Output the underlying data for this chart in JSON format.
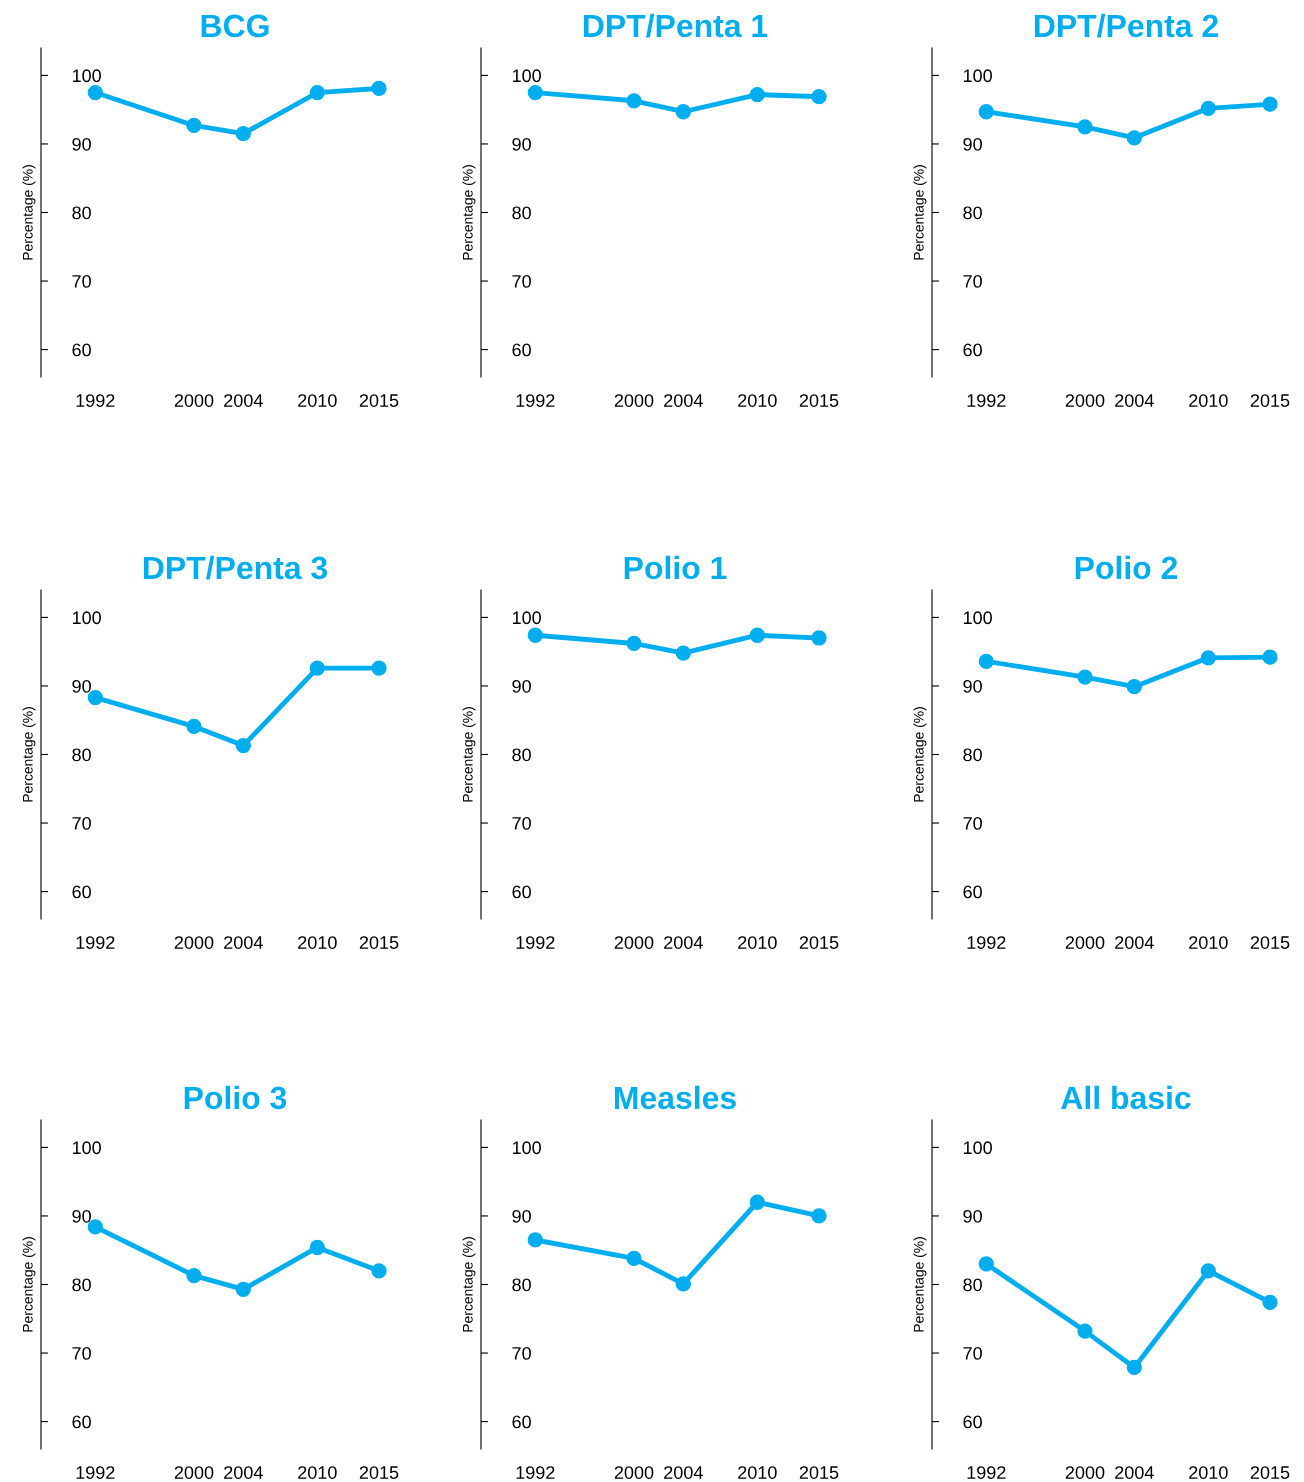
{
  "chart_data": [
    {
      "type": "line",
      "title": "BCG",
      "ylabel": "Percentage (%)",
      "x": [
        1992,
        2000,
        2004,
        2010,
        2015
      ],
      "values": [
        97.5,
        92.7,
        91.5,
        97.5,
        98.1
      ],
      "color": "#00aeef",
      "marker": "circle",
      "line_style": "solid",
      "xlim": [
        1987.6,
        2015
      ],
      "xticks": [
        1992,
        2000,
        2004,
        2010,
        2015
      ],
      "ylim": [
        56,
        104
      ],
      "yticks": [
        60,
        70,
        80,
        90,
        100
      ],
      "grid": false
    },
    {
      "type": "line",
      "title": "DPT/Penta 1",
      "ylabel": "Percentage (%)",
      "x": [
        1992,
        2000,
        2004,
        2010,
        2015
      ],
      "values": [
        97.5,
        96.3,
        94.7,
        97.2,
        96.9
      ],
      "color": "#00aeef",
      "marker": "circle",
      "line_style": "solid",
      "xlim": [
        1987.6,
        2015
      ],
      "xticks": [
        1992,
        2000,
        2004,
        2010,
        2015
      ],
      "ylim": [
        56,
        104
      ],
      "yticks": [
        60,
        70,
        80,
        90,
        100
      ],
      "grid": false
    },
    {
      "type": "line",
      "title": "DPT/Penta 2",
      "ylabel": "Percentage (%)",
      "x": [
        1992,
        2000,
        2004,
        2010,
        2015
      ],
      "values": [
        94.7,
        92.5,
        90.9,
        95.2,
        95.8
      ],
      "color": "#00aeef",
      "marker": "circle",
      "line_style": "solid",
      "xlim": [
        1987.6,
        2015
      ],
      "xticks": [
        1992,
        2000,
        2004,
        2010,
        2015
      ],
      "ylim": [
        56,
        104
      ],
      "yticks": [
        60,
        70,
        80,
        90,
        100
      ],
      "grid": false
    },
    {
      "type": "line",
      "title": "DPT/Penta 3",
      "ylabel": "Percentage (%)",
      "x": [
        1992,
        2000,
        2004,
        2010,
        2015
      ],
      "values": [
        88.3,
        84.1,
        81.3,
        92.6,
        92.6
      ],
      "color": "#00aeef",
      "marker": "circle",
      "line_style": "solid",
      "xlim": [
        1987.6,
        2015
      ],
      "xticks": [
        1992,
        2000,
        2004,
        2010,
        2015
      ],
      "ylim": [
        56,
        104
      ],
      "yticks": [
        60,
        70,
        80,
        90,
        100
      ],
      "grid": false
    },
    {
      "type": "line",
      "title": "Polio 1",
      "ylabel": "Percentage (%)",
      "x": [
        1992,
        2000,
        2004,
        2010,
        2015
      ],
      "values": [
        97.4,
        96.2,
        94.8,
        97.4,
        97.0
      ],
      "color": "#00aeef",
      "marker": "circle",
      "line_style": "solid",
      "xlim": [
        1987.6,
        2015
      ],
      "xticks": [
        1992,
        2000,
        2004,
        2010,
        2015
      ],
      "ylim": [
        56,
        104
      ],
      "yticks": [
        60,
        70,
        80,
        90,
        100
      ],
      "grid": false
    },
    {
      "type": "line",
      "title": "Polio 2",
      "ylabel": "Percentage (%)",
      "x": [
        1992,
        2000,
        2004,
        2010,
        2015
      ],
      "values": [
        93.6,
        91.3,
        89.9,
        94.1,
        94.2
      ],
      "color": "#00aeef",
      "marker": "circle",
      "line_style": "solid",
      "xlim": [
        1987.6,
        2015
      ],
      "xticks": [
        1992,
        2000,
        2004,
        2010,
        2015
      ],
      "ylim": [
        56,
        104
      ],
      "yticks": [
        60,
        70,
        80,
        90,
        100
      ],
      "grid": false
    },
    {
      "type": "line",
      "title": "Polio 3",
      "ylabel": "Percentage (%)",
      "x": [
        1992,
        2000,
        2004,
        2010,
        2015
      ],
      "values": [
        88.4,
        81.3,
        79.3,
        85.4,
        82.0
      ],
      "color": "#00aeef",
      "marker": "circle",
      "line_style": "solid",
      "xlim": [
        1987.6,
        2015
      ],
      "xticks": [
        1992,
        2000,
        2004,
        2010,
        2015
      ],
      "ylim": [
        56,
        104
      ],
      "yticks": [
        60,
        70,
        80,
        90,
        100
      ],
      "grid": false
    },
    {
      "type": "line",
      "title": "Measles",
      "ylabel": "Percentage (%)",
      "x": [
        1992,
        2000,
        2004,
        2010,
        2015
      ],
      "values": [
        86.5,
        83.8,
        80.1,
        92.0,
        90.0
      ],
      "color": "#00aeef",
      "marker": "circle",
      "line_style": "solid",
      "xlim": [
        1987.6,
        2015
      ],
      "xticks": [
        1992,
        2000,
        2004,
        2010,
        2015
      ],
      "ylim": [
        56,
        104
      ],
      "yticks": [
        60,
        70,
        80,
        90,
        100
      ],
      "grid": false
    },
    {
      "type": "line",
      "title": "All basic",
      "ylabel": "Percentage (%)",
      "x": [
        1992,
        2000,
        2004,
        2010,
        2015
      ],
      "values": [
        83.0,
        73.2,
        67.9,
        82.0,
        77.4
      ],
      "color": "#00aeef",
      "marker": "circle",
      "line_style": "solid",
      "xlim": [
        1987.6,
        2015
      ],
      "xticks": [
        1992,
        2000,
        2004,
        2010,
        2015
      ],
      "ylim": [
        56,
        104
      ],
      "yticks": [
        60,
        70,
        80,
        90,
        100
      ],
      "grid": false
    }
  ]
}
